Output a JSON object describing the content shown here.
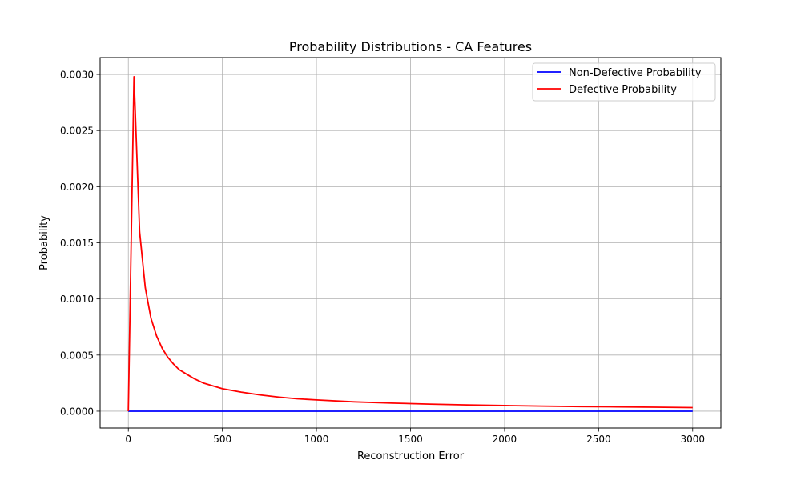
{
  "chart_data": {
    "type": "line",
    "title": "Probability Distributions - CA Features",
    "xlabel": "Reconstruction Error",
    "ylabel": "Probability",
    "xlim": [
      -150,
      3150
    ],
    "ylim": [
      -0.00015,
      0.00315
    ],
    "x_ticks": [
      0,
      500,
      1000,
      1500,
      2000,
      2500,
      3000
    ],
    "x_tick_labels": [
      "0",
      "500",
      "1000",
      "1500",
      "2000",
      "2500",
      "3000"
    ],
    "y_ticks": [
      0,
      0.0005,
      0.001,
      0.0015,
      0.002,
      0.0025,
      0.003
    ],
    "y_tick_labels": [
      "0.0000",
      "0.0005",
      "0.0010",
      "0.0015",
      "0.0020",
      "0.0025",
      "0.0030"
    ],
    "grid": true,
    "legend_position": "top-right",
    "series": [
      {
        "name": "Non-Defective Probability",
        "color": "#0000ff",
        "x": [
          0,
          3000
        ],
        "y": [
          0,
          0
        ]
      },
      {
        "name": "Defective Probability",
        "color": "#ff0000",
        "x": [
          0,
          30,
          60,
          90,
          120,
          150,
          180,
          210,
          240,
          270,
          300,
          350,
          400,
          450,
          500,
          600,
          700,
          800,
          900,
          1000,
          1200,
          1400,
          1600,
          1800,
          2000,
          2200,
          2400,
          2600,
          2800,
          3000
        ],
        "y": [
          0,
          0.00298,
          0.0016,
          0.0011,
          0.00083,
          0.00067,
          0.00056,
          0.00048,
          0.00042,
          0.00037,
          0.00034,
          0.00029,
          0.00025,
          0.000225,
          0.0002,
          0.00017,
          0.000145,
          0.000125,
          0.00011,
          0.0001,
          8.3e-05,
          7.2e-05,
          6.3e-05,
          5.6e-05,
          5e-05,
          4.5e-05,
          4.1e-05,
          3.8e-05,
          3.5e-05,
          3.2e-05
        ]
      }
    ]
  }
}
